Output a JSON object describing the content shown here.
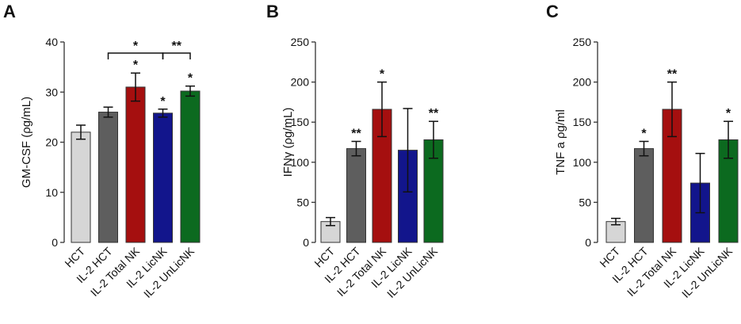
{
  "chart_data": [
    {
      "type": "bar",
      "panel": "A",
      "title": "",
      "xlabel": "",
      "ylabel": "GM-CSF (ρg/mL)",
      "categories": [
        "HCT",
        "IL-2 HCT",
        "IL-2 Total NK",
        "IL-2 LicNK",
        "IL-2 UnLicNK"
      ],
      "values": [
        22,
        26,
        31,
        25.8,
        30.2
      ],
      "errors": [
        1.4,
        1.0,
        2.8,
        0.8,
        1.0
      ],
      "significance": [
        "",
        "",
        "*",
        "*",
        "*"
      ],
      "brackets": [
        {
          "from": 1,
          "to": 3,
          "label": "*"
        },
        {
          "from": 3,
          "to": 4,
          "label": "**"
        }
      ],
      "colors": [
        "#d6d6d6",
        "#5e5e5e",
        "#a50f0f",
        "#12158c",
        "#0c6a1f"
      ],
      "ylim": [
        0,
        40
      ],
      "yticks": [
        0,
        10,
        20,
        30,
        40
      ],
      "grid": false
    },
    {
      "type": "bar",
      "panel": "B",
      "title": "",
      "xlabel": "",
      "ylabel": "IFNγ (ρg/mL)",
      "categories": [
        "HCT",
        "IL-2 HCT",
        "IL-2 Total NK",
        "IL-2 LicNK",
        "IL-2 UnLicNK"
      ],
      "values": [
        26,
        117,
        166,
        115,
        128
      ],
      "errors": [
        5,
        9,
        34,
        52,
        23
      ],
      "significance": [
        "",
        "**",
        "*",
        "",
        "**"
      ],
      "brackets": [],
      "colors": [
        "#d6d6d6",
        "#5e5e5e",
        "#a50f0f",
        "#12158c",
        "#0c6a1f"
      ],
      "ylim": [
        0,
        250
      ],
      "yticks": [
        0,
        50,
        100,
        150,
        200,
        250
      ],
      "grid": false
    },
    {
      "type": "bar",
      "panel": "C",
      "title": "",
      "xlabel": "",
      "ylabel": "TNF a ρg/ml",
      "categories": [
        "HCT",
        "IL-2 HCT",
        "IL-2 Total NK",
        "IL-2 LicNK",
        "IL-2 UnLicNK"
      ],
      "values": [
        26,
        117,
        166,
        74,
        128
      ],
      "errors": [
        4,
        9,
        34,
        37,
        23
      ],
      "significance": [
        "",
        "*",
        "**",
        "",
        "*"
      ],
      "brackets": [],
      "colors": [
        "#d6d6d6",
        "#5e5e5e",
        "#a50f0f",
        "#12158c",
        "#0c6a1f"
      ],
      "ylim": [
        0,
        250
      ],
      "yticks": [
        0,
        50,
        100,
        150,
        200,
        250
      ],
      "grid": false
    }
  ]
}
